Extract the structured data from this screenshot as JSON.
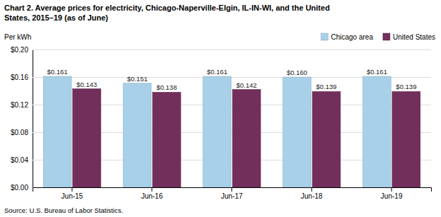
{
  "chart_data": {
    "type": "bar",
    "title": [
      "Chart 2. Average prices for electricity, Chicago-Naperville-Elgin, IL-IN-WI, and the United",
      "States, 2015–19  (as of June)"
    ],
    "ylabel": "Per kWh",
    "source": "Source: U.S. Bureau of Labor Statistics.",
    "categories": [
      "Jun-15",
      "Jun-16",
      "Jun-17",
      "Jun-18",
      "Jun-19"
    ],
    "series": [
      {
        "name": "Chicago area",
        "color": "#A8D0E8",
        "values": [
          0.161,
          0.151,
          0.161,
          0.16,
          0.161
        ],
        "value_labels": [
          "$0.161",
          "$0.151",
          "$0.161",
          "$0.160",
          "$0.161"
        ]
      },
      {
        "name": "United States",
        "color": "#722F5B",
        "values": [
          0.143,
          0.138,
          0.142,
          0.139,
          0.139
        ],
        "value_labels": [
          "$0.143",
          "$0.138",
          "$0.142",
          "$0.139",
          "$0.139"
        ]
      }
    ],
    "ylim": [
      0,
      0.2
    ],
    "yticks": [
      {
        "value": 0.0,
        "label": "$0.00"
      },
      {
        "value": 0.04,
        "label": "$0.04"
      },
      {
        "value": 0.08,
        "label": "$0.08"
      },
      {
        "value": 0.12,
        "label": "$0.12"
      },
      {
        "value": 0.16,
        "label": "$0.16"
      },
      {
        "value": 0.2,
        "label": "$0.20"
      }
    ],
    "grid": true,
    "legend": "top-right",
    "data_labels": true
  }
}
